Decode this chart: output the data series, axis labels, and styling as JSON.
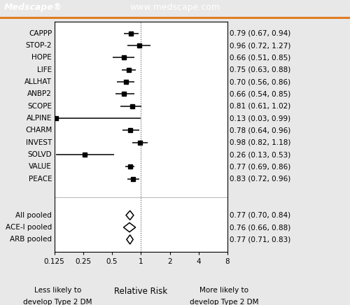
{
  "studies": [
    {
      "name": "CAPPP",
      "rr": 0.79,
      "lo": 0.67,
      "hi": 0.94,
      "label": "0.79 (0.67, 0.94)"
    },
    {
      "name": "STOP-2",
      "rr": 0.96,
      "lo": 0.72,
      "hi": 1.27,
      "label": "0.96 (0.72, 1.27)"
    },
    {
      "name": "HOPE",
      "rr": 0.66,
      "lo": 0.51,
      "hi": 0.85,
      "label": "0.66 (0.51, 0.85)"
    },
    {
      "name": "LIFE",
      "rr": 0.75,
      "lo": 0.63,
      "hi": 0.88,
      "label": "0.75 (0.63, 0.88)"
    },
    {
      "name": "ALLHAT",
      "rr": 0.7,
      "lo": 0.56,
      "hi": 0.86,
      "label": "0.70 (0.56, 0.86)"
    },
    {
      "name": "ANBP2",
      "rr": 0.66,
      "lo": 0.54,
      "hi": 0.85,
      "label": "0.66 (0.54, 0.85)"
    },
    {
      "name": "SCOPE",
      "rr": 0.81,
      "lo": 0.61,
      "hi": 1.02,
      "label": "0.81 (0.61, 1.02)"
    },
    {
      "name": "ALPINE",
      "rr": 0.13,
      "lo": 0.03,
      "hi": 0.99,
      "label": "0.13 (0.03, 0.99)"
    },
    {
      "name": "CHARM",
      "rr": 0.78,
      "lo": 0.64,
      "hi": 0.96,
      "label": "0.78 (0.64, 0.96)"
    },
    {
      "name": "INVEST",
      "rr": 0.98,
      "lo": 0.82,
      "hi": 1.18,
      "label": "0.98 (0.82, 1.18)"
    },
    {
      "name": "SOLVD",
      "rr": 0.26,
      "lo": 0.13,
      "hi": 0.53,
      "label": "0.26 (0.13, 0.53)"
    },
    {
      "name": "VALUE",
      "rr": 0.77,
      "lo": 0.69,
      "hi": 0.86,
      "label": "0.77 (0.69, 0.86)"
    },
    {
      "name": "PEACE",
      "rr": 0.83,
      "lo": 0.72,
      "hi": 0.96,
      "label": "0.83 (0.72, 0.96)"
    }
  ],
  "pooled": [
    {
      "name": "All pooled",
      "rr": 0.77,
      "lo": 0.7,
      "hi": 0.84,
      "label": "0.77 (0.70, 0.84)"
    },
    {
      "name": "ACE-I pooled",
      "rr": 0.76,
      "lo": 0.66,
      "hi": 0.88,
      "label": "0.76 (0.66, 0.88)"
    },
    {
      "name": "ARB pooled",
      "rr": 0.77,
      "lo": 0.71,
      "hi": 0.83,
      "label": "0.77 (0.71, 0.83)"
    }
  ],
  "header_bg": "#1b3f7a",
  "header_orange": "#e07820",
  "xmin": 0.125,
  "xmax": 8.0,
  "xticks": [
    0.125,
    0.25,
    0.5,
    1.0,
    2.0,
    4.0,
    8.0
  ],
  "xticklabels": [
    "0.125",
    "0.25",
    "0.5",
    "1",
    "2",
    "4",
    "8"
  ],
  "xlabel_center": "Relative Risk",
  "xlabel_left": "Less likely to\ndevelop Type 2 DM",
  "xlabel_right": "More likely to\ndevelop Type 2 DM",
  "medscape_text": "Medscape®",
  "url_text": "www.medscape.com",
  "bg_color": "#e8e8e8",
  "plot_bg": "#ffffff"
}
